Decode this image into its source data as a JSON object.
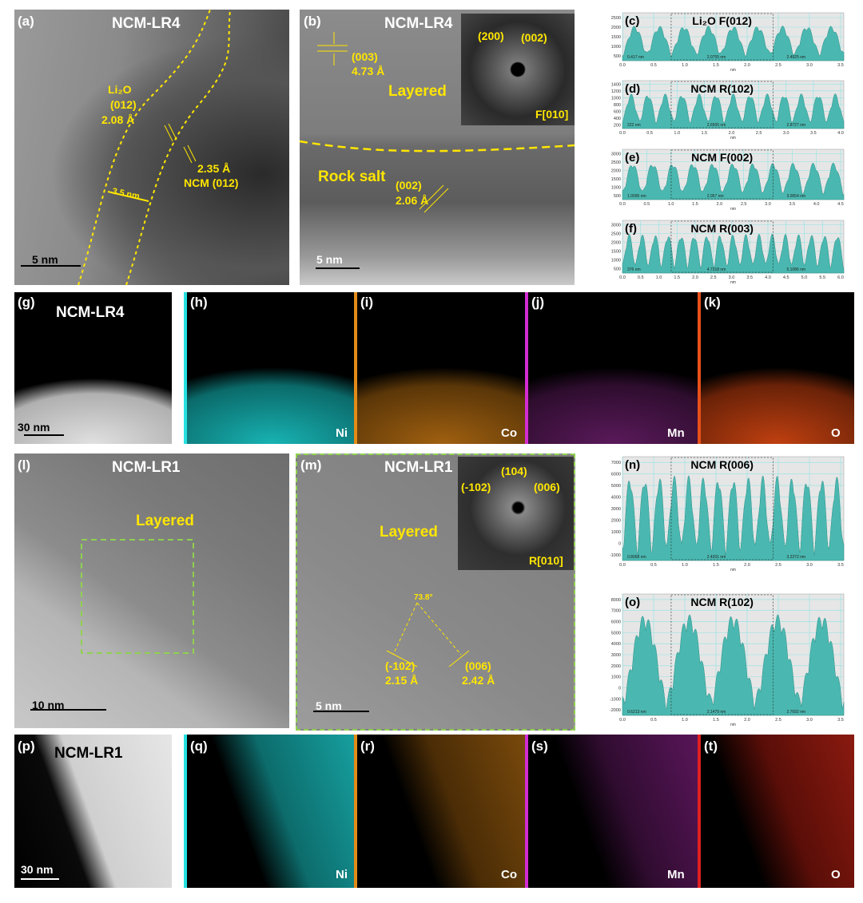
{
  "panels": {
    "a": {
      "label": "(a)",
      "title": "NCM-LR4",
      "annotations": [
        "Li₂O",
        "(012)",
        "2.08 Å",
        "2.35 Å",
        "NCM (012)",
        "3.5 nm"
      ],
      "scale_bar": "5 nm"
    },
    "b": {
      "label": "(b)",
      "title": "NCM-LR4",
      "annotations": [
        "(003)",
        "4.73 Å",
        "Layered",
        "Rock salt",
        "(002)",
        "2.06 Å"
      ],
      "inset": [
        "(200)",
        "(002)",
        "F[010]"
      ],
      "scale_bar": "5 nm"
    },
    "c": {
      "label": "(c)",
      "title": "Li₂O F(012)",
      "yticks": [
        2500,
        2000,
        1500,
        1000,
        500
      ],
      "xticks": [
        "0.0",
        "0.5",
        "1.0",
        "1.5",
        "2.0",
        "2.5",
        "3.0",
        "3.5"
      ],
      "x_label": "nm",
      "measurements": [
        "0.417 nm",
        "2.0755 nm",
        "2.4925 nm"
      ]
    },
    "d": {
      "label": "(d)",
      "title": "NCM R(102)",
      "yticks": [
        1400,
        1200,
        1000,
        800,
        600,
        400,
        200
      ],
      "xticks": [
        "0.0",
        "0.5",
        "1.0",
        "1.5",
        "2.0",
        "2.5",
        "3.0",
        "3.5",
        "4.0"
      ],
      "x_label": "nm",
      "measurements": [
        "222 nm",
        "2.6505 nm",
        "2.8727 nm"
      ]
    },
    "e": {
      "label": "(e)",
      "title": "NCM F(002)",
      "yticks": [
        3000,
        2500,
        2000,
        1500,
        1000,
        500
      ],
      "xticks": [
        "0.0",
        "0.5",
        "1.0",
        "1.5",
        "2.0",
        "2.5",
        "3.0",
        "3.5",
        "4.0",
        "4.5"
      ],
      "x_label": "nm",
      "measurements": [
        "1.0095 nm",
        "2.057 nm",
        "3.0654 nm"
      ]
    },
    "f": {
      "label": "(f)",
      "title": "NCM R(003)",
      "yticks": [
        3000,
        2500,
        2000,
        1500,
        1000,
        500
      ],
      "xticks": [
        "0.0",
        "0.5",
        "1.0",
        "1.5",
        "2.0",
        "2.5",
        "3.0",
        "3.5",
        "4.0",
        "4.5",
        "5.0",
        "5.5",
        "6.0"
      ],
      "x_label": "nm",
      "measurements": [
        "376 nm",
        "4.7318 nm",
        "5.1086 nm"
      ]
    },
    "g": {
      "label": "(g)",
      "title": "NCM-LR4",
      "scale_bar": "30 nm"
    },
    "h": {
      "label": "(h)",
      "element": "Ni"
    },
    "i": {
      "label": "(i)",
      "element": "Co"
    },
    "j": {
      "label": "(j)",
      "element": "Mn"
    },
    "k": {
      "label": "(k)",
      "element": "O"
    },
    "l": {
      "label": "(l)",
      "title": "NCM-LR1",
      "annotations": [
        "Layered"
      ],
      "scale_bar": "10 nm"
    },
    "m": {
      "label": "(m)",
      "title": "NCM-LR1",
      "annotations": [
        "Layered",
        "73.8°",
        "(-102)",
        "2.15 Å",
        "(006)",
        "2.42 Å"
      ],
      "inset": [
        "(104)",
        "(-102)",
        "(006)",
        "R[010]"
      ],
      "scale_bar": "5 nm"
    },
    "n": {
      "label": "(n)",
      "title": "NCM R(006)",
      "yticks": [
        7000,
        6000,
        5000,
        4000,
        3000,
        2000,
        1000,
        0,
        -1000
      ],
      "xticks": [
        "0.0",
        "0.5",
        "1.0",
        "1.5",
        "2.0",
        "2.5",
        "3.0",
        "3.5"
      ],
      "x_label": "nm",
      "measurements": [
        "0.8068 nm",
        "2.4201 nm",
        "3.2272 nm"
      ]
    },
    "o": {
      "label": "(o)",
      "title": "NCM R(102)",
      "yticks": [
        8000,
        7000,
        6000,
        5000,
        4000,
        3000,
        2000,
        1000,
        0,
        -1000,
        -2000
      ],
      "xticks": [
        "0.0",
        "0.5",
        "1.0",
        "1.5",
        "2.0",
        "2.5",
        "3.0",
        "3.5"
      ],
      "x_label": "nm",
      "measurements": [
        "0.6213 nm",
        "2.1479 nm",
        "2.7692 nm"
      ]
    },
    "p": {
      "label": "(p)",
      "title": "NCM-LR1",
      "scale_bar": "30 nm"
    },
    "q": {
      "label": "(q)",
      "element": "Ni"
    },
    "r": {
      "label": "(r)",
      "element": "Co"
    },
    "s": {
      "label": "(s)",
      "element": "Mn"
    },
    "t": {
      "label": "(t)",
      "element": "O"
    }
  }
}
